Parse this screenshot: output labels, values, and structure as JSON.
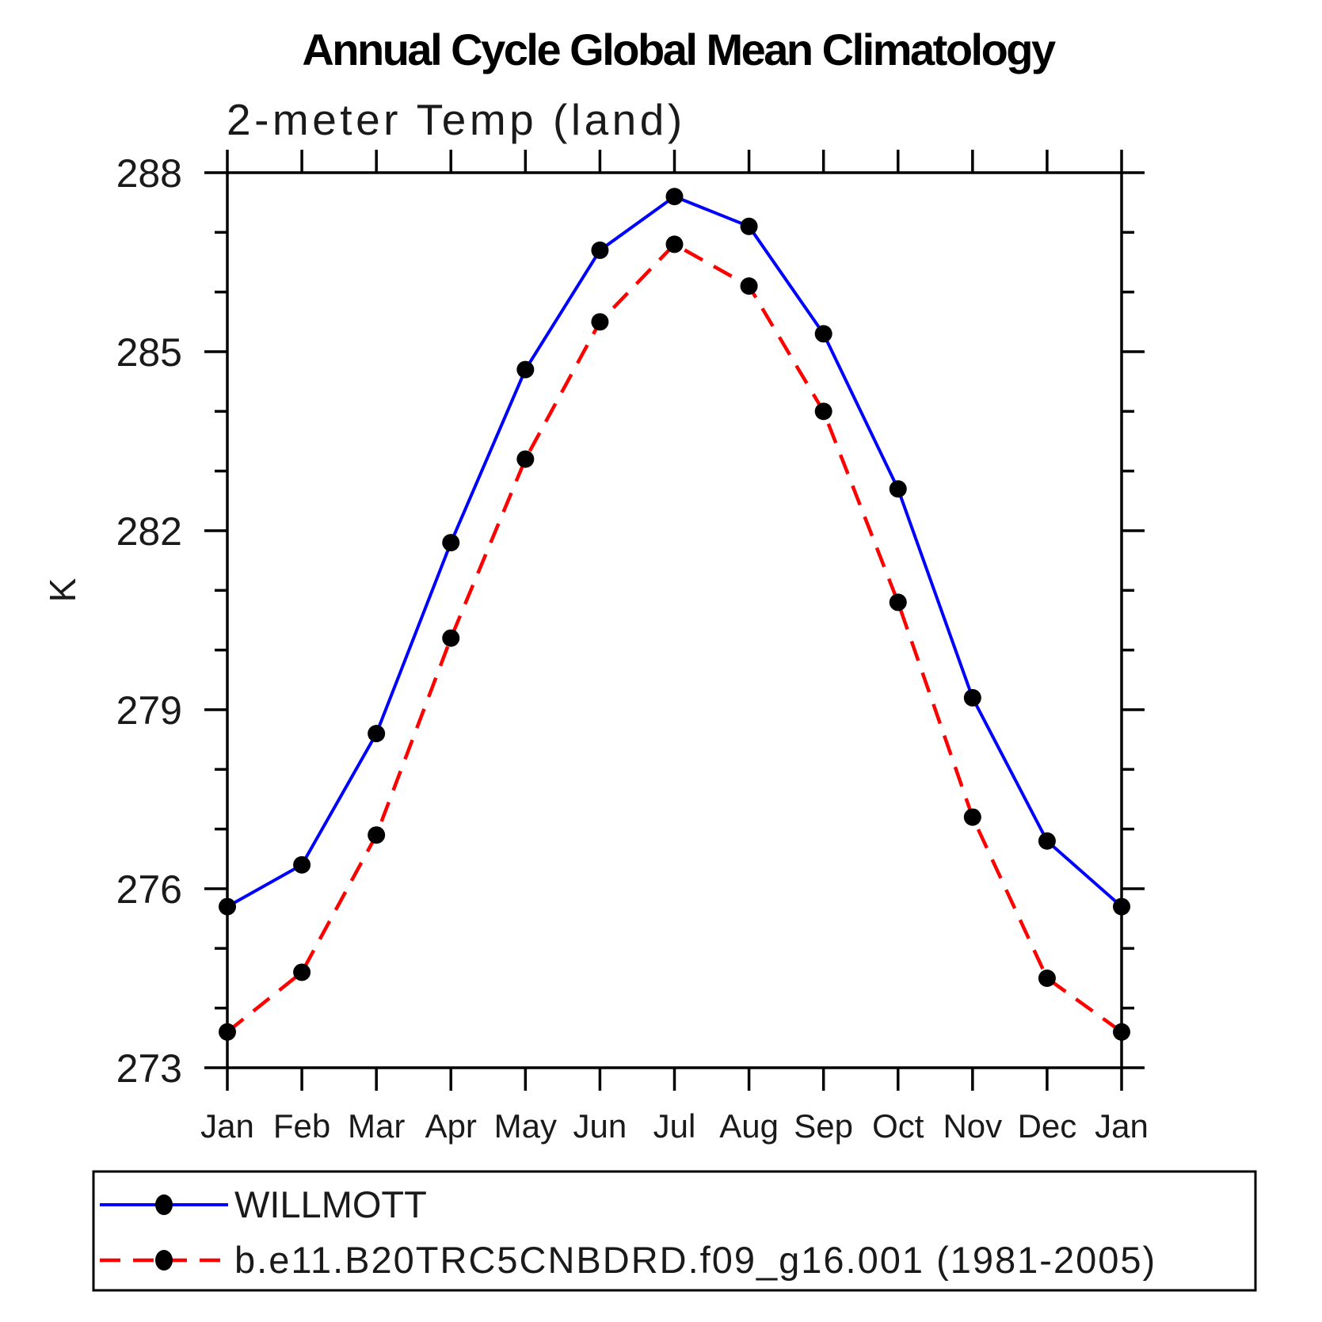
{
  "title": "Annual Cycle Global Mean Climatology",
  "subtitle": "2-meter Temp (land)",
  "ylabel": "K",
  "axis_color": "#000000",
  "chart_data": {
    "type": "line",
    "x_categories": [
      "Jan",
      "Feb",
      "Mar",
      "Apr",
      "May",
      "Jun",
      "Jul",
      "Aug",
      "Sep",
      "Oct",
      "Nov",
      "Dec",
      "Jan"
    ],
    "xlabel": "",
    "ylabel": "K",
    "ylim": [
      273,
      288
    ],
    "ytick_major": [
      273,
      276,
      279,
      282,
      285,
      288
    ],
    "ytick_minor_step": 1,
    "grid": false,
    "legend_position": "bottom",
    "series": [
      {
        "name": "WILLMOTT",
        "color": "#0000ff",
        "style": "solid",
        "marker": "circle",
        "marker_color": "#000000",
        "values": [
          275.7,
          276.4,
          278.6,
          281.8,
          284.7,
          286.7,
          287.6,
          287.1,
          285.3,
          282.7,
          279.2,
          276.8,
          275.7
        ]
      },
      {
        "name": "b.e11.B20TRC5CNBDRD.f09_g16.001 (1981-2005)",
        "color": "#ff0000",
        "style": "dashed",
        "marker": "circle",
        "marker_color": "#000000",
        "values": [
          273.6,
          274.6,
          276.9,
          280.2,
          283.2,
          285.5,
          286.8,
          286.1,
          284.0,
          280.8,
          277.2,
          274.5,
          273.6
        ]
      }
    ]
  }
}
